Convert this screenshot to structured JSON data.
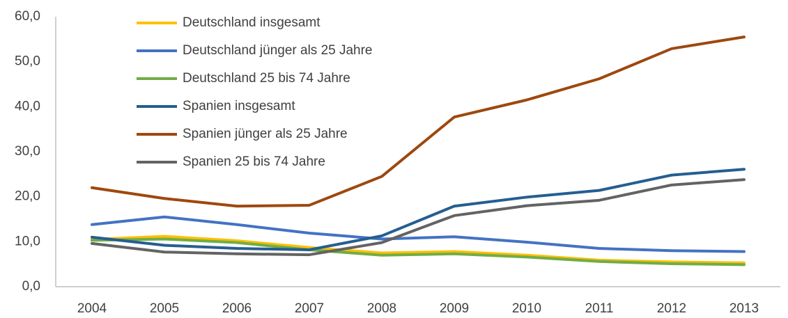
{
  "chart_data": {
    "type": "line",
    "categories": [
      "2004",
      "2005",
      "2006",
      "2007",
      "2008",
      "2009",
      "2010",
      "2011",
      "2012",
      "2013"
    ],
    "series": [
      {
        "name": "Deutschland insgesamt",
        "color": "#ffc000",
        "values": [
          10.5,
          11.2,
          10.2,
          8.7,
          7.5,
          7.8,
          7.0,
          5.9,
          5.5,
          5.3
        ]
      },
      {
        "name": "Deutschland jünger als 25 Jahre",
        "color": "#4472c4",
        "values": [
          13.8,
          15.5,
          13.8,
          11.9,
          10.6,
          11.1,
          9.9,
          8.5,
          8.0,
          7.8
        ]
      },
      {
        "name": "Deutschland 25 bis 74 Jahre",
        "color": "#70ad47",
        "values": [
          10.3,
          10.6,
          9.8,
          8.2,
          7.0,
          7.3,
          6.6,
          5.6,
          5.1,
          4.9
        ]
      },
      {
        "name": "Spanien insgesamt",
        "color": "#255e91",
        "values": [
          11.0,
          9.2,
          8.5,
          8.2,
          11.3,
          17.9,
          19.9,
          21.4,
          24.8,
          26.1
        ]
      },
      {
        "name": "Spanien jünger als 25 Jahre",
        "color": "#9e480e",
        "values": [
          22.0,
          19.6,
          17.9,
          18.1,
          24.5,
          37.7,
          41.5,
          46.2,
          52.9,
          55.5
        ]
      },
      {
        "name": "Spanien 25 bis 74 Jahre",
        "color": "#636363",
        "values": [
          9.6,
          7.7,
          7.3,
          7.1,
          9.8,
          15.8,
          18.0,
          19.2,
          22.6,
          23.8
        ]
      }
    ],
    "ylim": [
      0,
      60
    ],
    "yticks": [
      {
        "value": 0,
        "label": "0,0"
      },
      {
        "value": 10,
        "label": "10,0"
      },
      {
        "value": 20,
        "label": "20,0"
      },
      {
        "value": 30,
        "label": "30,0"
      },
      {
        "value": 40,
        "label": "40,0"
      },
      {
        "value": 50,
        "label": "50,0"
      },
      {
        "value": 60,
        "label": "60,0"
      }
    ],
    "grid": false,
    "legend": "upper left"
  }
}
